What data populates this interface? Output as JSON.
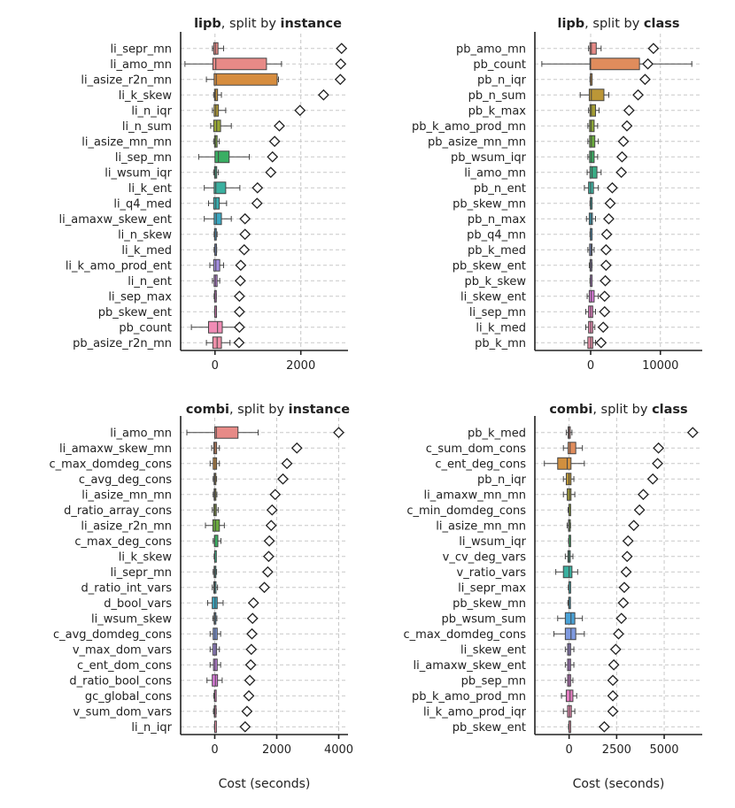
{
  "chart_data": [
    {
      "type": "boxplot",
      "title_bold": "lipb",
      "title_rest": ", split by ",
      "title_bold2": "instance",
      "xlabel": "",
      "xlim": [
        -800,
        3100
      ],
      "xticks": [
        0,
        2000
      ],
      "xtick_labels": [
        "0",
        "2000"
      ],
      "categories": [
        "li_sepr_mn",
        "li_amo_mn",
        "li_asize_r2n_mn",
        "li_k_skew",
        "li_n_iqr",
        "li_n_sum",
        "li_asize_mn_mn",
        "li_sep_mn",
        "li_wsum_iqr",
        "li_k_ent",
        "li_q4_med",
        "li_amaxw_skew_ent",
        "li_n_skew",
        "li_k_med",
        "li_k_amo_prod_ent",
        "li_n_ent",
        "li_sep_max",
        "pb_skew_ent",
        "pb_count",
        "pb_asize_r2n_mn"
      ],
      "colors": [
        "#e78a87",
        "#e78a87",
        "#d68d3f",
        "#c8963c",
        "#b39c36",
        "#97a634",
        "#7aaa38",
        "#3aae63",
        "#3aae86",
        "#3bb0a0",
        "#3aadb0",
        "#3ba8c3",
        "#4aa3d8",
        "#7f9ae0",
        "#a58fe3",
        "#c383e5",
        "#d87ad8",
        "#e57dc2",
        "#f08cb5",
        "#ed8fa8"
      ],
      "boxes": [
        {
          "whislo": -60,
          "q1": -30,
          "med": 10,
          "q3": 70,
          "whishi": 200,
          "flier": 2950
        },
        {
          "whislo": -700,
          "q1": -50,
          "med": 20,
          "q3": 1200,
          "whishi": 1550,
          "flier": 2930
        },
        {
          "whislo": -200,
          "q1": -20,
          "med": 30,
          "q3": 1450,
          "whishi": 1480,
          "flier": 2920
        },
        {
          "whislo": -30,
          "q1": -10,
          "med": 10,
          "q3": 60,
          "whishi": 150,
          "flier": 2530
        },
        {
          "whislo": -60,
          "q1": -20,
          "med": 20,
          "q3": 80,
          "whishi": 250,
          "flier": 1980
        },
        {
          "whislo": -100,
          "q1": -30,
          "med": 40,
          "q3": 130,
          "whishi": 380,
          "flier": 1500
        },
        {
          "whislo": -30,
          "q1": -10,
          "med": 10,
          "q3": 50,
          "whishi": 100,
          "flier": 1390
        },
        {
          "whislo": -380,
          "q1": 0,
          "med": 80,
          "q3": 330,
          "whishi": 800,
          "flier": 1340
        },
        {
          "whislo": -30,
          "q1": -10,
          "med": 5,
          "q3": 40,
          "whishi": 80,
          "flier": 1300
        },
        {
          "whislo": -250,
          "q1": -20,
          "med": 20,
          "q3": 250,
          "whishi": 580,
          "flier": 990
        },
        {
          "whislo": -150,
          "q1": -30,
          "med": 20,
          "q3": 100,
          "whishi": 270,
          "flier": 980
        },
        {
          "whislo": -250,
          "q1": -20,
          "med": 30,
          "q3": 150,
          "whishi": 380,
          "flier": 700
        },
        {
          "whislo": -20,
          "q1": -10,
          "med": 0,
          "q3": 30,
          "whishi": 50,
          "flier": 700
        },
        {
          "whislo": -20,
          "q1": -5,
          "med": 5,
          "q3": 25,
          "whishi": 40,
          "flier": 680
        },
        {
          "whislo": -120,
          "q1": -30,
          "med": 20,
          "q3": 110,
          "whishi": 200,
          "flier": 600
        },
        {
          "whislo": -60,
          "q1": -20,
          "med": 10,
          "q3": 50,
          "whishi": 110,
          "flier": 590
        },
        {
          "whislo": -20,
          "q1": -10,
          "med": 0,
          "q3": 15,
          "whishi": 30,
          "flier": 570
        },
        {
          "whislo": -10,
          "q1": -5,
          "med": 0,
          "q3": 10,
          "whishi": 20,
          "flier": 570
        },
        {
          "whislo": -550,
          "q1": -150,
          "med": 60,
          "q3": 170,
          "whishi": 500,
          "flier": 570
        },
        {
          "whislo": -200,
          "q1": -50,
          "med": 50,
          "q3": 150,
          "whishi": 350,
          "flier": 560
        }
      ]
    },
    {
      "type": "boxplot",
      "title_bold": "lipb",
      "title_rest": ", split by ",
      "title_bold2": "class",
      "xlabel": "",
      "xlim": [
        -8000,
        16000
      ],
      "xticks": [
        0,
        10000
      ],
      "xtick_labels": [
        "0",
        "10000"
      ],
      "categories": [
        "pb_amo_mn",
        "pb_count",
        "pb_n_iqr",
        "pb_n_sum",
        "pb_k_max",
        "pb_k_amo_prod_mn",
        "pb_asize_mn_mn",
        "pb_wsum_iqr",
        "li_amo_mn",
        "pb_n_ent",
        "pb_skew_mn",
        "pb_n_max",
        "pb_q4_mn",
        "pb_k_med",
        "pb_skew_ent",
        "pb_k_skew",
        "li_skew_ent",
        "li_sep_mn",
        "li_k_med",
        "pb_k_mn"
      ],
      "colors": [
        "#e78a87",
        "#e08c5c",
        "#d08f3f",
        "#bb9637",
        "#a49d34",
        "#8aa535",
        "#6aab3d",
        "#3aae62",
        "#3aae86",
        "#3bb0a0",
        "#3aadb0",
        "#3ba8c3",
        "#4aa3d8",
        "#7f9ae0",
        "#a58fe3",
        "#c383e5",
        "#d87ad8",
        "#e57dc2",
        "#f08cb5",
        "#ed8fa8"
      ],
      "boxes": [
        {
          "whislo": -300,
          "q1": -100,
          "med": 100,
          "q3": 800,
          "whishi": 1500,
          "flier": 9000
        },
        {
          "whislo": -7000,
          "q1": -100,
          "med": 0,
          "q3": 7000,
          "whishi": 14500,
          "flier": 8200
        },
        {
          "whislo": -100,
          "q1": -50,
          "med": 0,
          "q3": 50,
          "whishi": 120,
          "flier": 7800
        },
        {
          "whislo": -1500,
          "q1": -200,
          "med": 100,
          "q3": 1900,
          "whishi": 2600,
          "flier": 6800
        },
        {
          "whislo": -300,
          "q1": -100,
          "med": 100,
          "q3": 700,
          "whishi": 1200,
          "flier": 5500
        },
        {
          "whislo": -400,
          "q1": -150,
          "med": 50,
          "q3": 500,
          "whishi": 1000,
          "flier": 5200
        },
        {
          "whislo": -400,
          "q1": -150,
          "med": 100,
          "q3": 600,
          "whishi": 1100,
          "flier": 4700
        },
        {
          "whislo": -400,
          "q1": -150,
          "med": 100,
          "q3": 500,
          "whishi": 1000,
          "flier": 4500
        },
        {
          "whislo": -500,
          "q1": -100,
          "med": 200,
          "q3": 900,
          "whishi": 1500,
          "flier": 4400
        },
        {
          "whislo": -900,
          "q1": -300,
          "med": 0,
          "q3": 400,
          "whishi": 1100,
          "flier": 3100
        },
        {
          "whislo": -100,
          "q1": -50,
          "med": 0,
          "q3": 50,
          "whishi": 100,
          "flier": 2800
        },
        {
          "whislo": -600,
          "q1": -200,
          "med": 50,
          "q3": 250,
          "whishi": 700,
          "flier": 2600
        },
        {
          "whislo": -100,
          "q1": -50,
          "med": 0,
          "q3": 50,
          "whishi": 100,
          "flier": 2300
        },
        {
          "whislo": -400,
          "q1": -150,
          "med": 50,
          "q3": 200,
          "whishi": 500,
          "flier": 2200
        },
        {
          "whislo": -200,
          "q1": -80,
          "med": 0,
          "q3": 80,
          "whishi": 200,
          "flier": 2200
        },
        {
          "whislo": -100,
          "q1": -50,
          "med": 0,
          "q3": 50,
          "whishi": 100,
          "flier": 2100
        },
        {
          "whislo": -500,
          "q1": -200,
          "med": 100,
          "q3": 500,
          "whishi": 1100,
          "flier": 2000
        },
        {
          "whislo": -700,
          "q1": -300,
          "med": 0,
          "q3": 300,
          "whishi": 700,
          "flier": 2000
        },
        {
          "whislo": -700,
          "q1": -300,
          "med": 0,
          "q3": 300,
          "whishi": 600,
          "flier": 1800
        },
        {
          "whislo": -900,
          "q1": -400,
          "med": 0,
          "q3": 300,
          "whishi": 700,
          "flier": 1500
        }
      ]
    },
    {
      "type": "boxplot",
      "title_bold": "combi",
      "title_rest": ", split by ",
      "title_bold2": "instance",
      "xlabel": "Cost (seconds)",
      "xlim": [
        -1100,
        4300
      ],
      "xticks": [
        0,
        2000,
        4000
      ],
      "xtick_labels": [
        "0",
        "2000",
        "4000"
      ],
      "categories": [
        "li_amo_mn",
        "li_amaxw_skew_mn",
        "c_max_domdeg_cons",
        "c_avg_deg_cons",
        "li_asize_mn_mn",
        "d_ratio_array_cons",
        "li_asize_r2n_mn",
        "c_max_deg_cons",
        "li_k_skew",
        "li_sepr_mn",
        "d_ratio_int_vars",
        "d_bool_vars",
        "li_wsum_skew",
        "c_avg_domdeg_cons",
        "v_max_dom_vars",
        "c_ent_dom_cons",
        "d_ratio_bool_cons",
        "gc_global_cons",
        "v_sum_dom_vars",
        "li_n_iqr"
      ],
      "colors": [
        "#e78a87",
        "#e08c5c",
        "#d08f3f",
        "#bb9637",
        "#a49d34",
        "#8aa535",
        "#6aab3d",
        "#3aae62",
        "#3aae86",
        "#3bb0a0",
        "#3aadb0",
        "#3ba8c3",
        "#4aa3d8",
        "#7f9ae0",
        "#a58fe3",
        "#c383e5",
        "#d87ad8",
        "#e57dc2",
        "#f08cb5",
        "#ed8fa8"
      ],
      "boxes": [
        {
          "whislo": -900,
          "q1": 0,
          "med": 50,
          "q3": 750,
          "whishi": 1400,
          "flier": 4000
        },
        {
          "whislo": -100,
          "q1": -30,
          "med": 10,
          "q3": 60,
          "whishi": 150,
          "flier": 2650
        },
        {
          "whislo": -150,
          "q1": -50,
          "med": 10,
          "q3": 60,
          "whishi": 150,
          "flier": 2330
        },
        {
          "whislo": -50,
          "q1": -20,
          "med": 0,
          "q3": 30,
          "whishi": 60,
          "flier": 2200
        },
        {
          "whislo": -50,
          "q1": -20,
          "med": 0,
          "q3": 30,
          "whishi": 70,
          "flier": 1950
        },
        {
          "whislo": -80,
          "q1": -30,
          "med": 10,
          "q3": 50,
          "whishi": 110,
          "flier": 1850
        },
        {
          "whislo": -300,
          "q1": -60,
          "med": 20,
          "q3": 150,
          "whishi": 310,
          "flier": 1820
        },
        {
          "whislo": -50,
          "q1": -10,
          "med": 0,
          "q3": 100,
          "whishi": 200,
          "flier": 1760
        },
        {
          "whislo": -20,
          "q1": -5,
          "med": 0,
          "q3": 5,
          "whishi": 20,
          "flier": 1740
        },
        {
          "whislo": -50,
          "q1": -20,
          "med": 0,
          "q3": 20,
          "whishi": 60,
          "flier": 1710
        },
        {
          "whislo": -80,
          "q1": -30,
          "med": 0,
          "q3": 40,
          "whishi": 90,
          "flier": 1600
        },
        {
          "whislo": -230,
          "q1": -80,
          "med": 10,
          "q3": 80,
          "whishi": 270,
          "flier": 1250
        },
        {
          "whislo": -60,
          "q1": -20,
          "med": 0,
          "q3": 30,
          "whishi": 70,
          "flier": 1220
        },
        {
          "whislo": -150,
          "q1": -50,
          "med": 10,
          "q3": 80,
          "whishi": 190,
          "flier": 1200
        },
        {
          "whislo": -150,
          "q1": -60,
          "med": 10,
          "q3": 60,
          "whishi": 150,
          "flier": 1180
        },
        {
          "whislo": -150,
          "q1": -40,
          "med": 10,
          "q3": 80,
          "whishi": 190,
          "flier": 1160
        },
        {
          "whislo": -250,
          "q1": -80,
          "med": 20,
          "q3": 90,
          "whishi": 240,
          "flier": 1130
        },
        {
          "whislo": -30,
          "q1": -10,
          "med": 0,
          "q3": 10,
          "whishi": 30,
          "flier": 1100
        },
        {
          "whislo": -40,
          "q1": -15,
          "med": 0,
          "q3": 20,
          "whishi": 50,
          "flier": 1040
        },
        {
          "whislo": -10,
          "q1": -3,
          "med": 0,
          "q3": 3,
          "whishi": 10,
          "flier": 980
        }
      ]
    },
    {
      "type": "boxplot",
      "title_bold": "combi",
      "title_rest": ", split by ",
      "title_bold2": "class",
      "xlabel": "Cost (seconds)",
      "xlim": [
        -1800,
        7000
      ],
      "xticks": [
        0,
        2500,
        5000
      ],
      "xtick_labels": [
        "0",
        "2500",
        "5000"
      ],
      "categories": [
        "pb_k_med",
        "c_sum_dom_cons",
        "c_ent_deg_cons",
        "pb_n_iqr",
        "li_amaxw_mn_mn",
        "c_min_domdeg_cons",
        "li_asize_mn_mn",
        "li_wsum_iqr",
        "v_cv_deg_vars",
        "v_ratio_vars",
        "li_sepr_max",
        "pb_skew_mn",
        "pb_wsum_sum",
        "c_max_domdeg_cons",
        "li_skew_ent",
        "li_amaxw_skew_ent",
        "pb_sep_mn",
        "pb_k_amo_prod_mn",
        "li_k_amo_prod_iqr",
        "pb_skew_ent"
      ],
      "colors": [
        "#e78a87",
        "#e08c5c",
        "#d08f3f",
        "#bb9637",
        "#a49d34",
        "#8aa535",
        "#6aab3d",
        "#3aae62",
        "#3aae86",
        "#3bb0a0",
        "#3aadb0",
        "#3ba8c3",
        "#4aa3d8",
        "#7f9ae0",
        "#a58fe3",
        "#c383e5",
        "#d87ad8",
        "#e57dc2",
        "#f08cb5",
        "#ed8fa8"
      ],
      "boxes": [
        {
          "whislo": -150,
          "q1": -50,
          "med": 0,
          "q3": 60,
          "whishi": 150,
          "flier": 6500
        },
        {
          "whislo": -300,
          "q1": -50,
          "med": 50,
          "q3": 350,
          "whishi": 700,
          "flier": 4700
        },
        {
          "whislo": -1300,
          "q1": -600,
          "med": -100,
          "q3": 100,
          "whishi": 800,
          "flier": 4650
        },
        {
          "whislo": -300,
          "q1": -150,
          "med": 0,
          "q3": 100,
          "whishi": 250,
          "flier": 4400
        },
        {
          "whislo": -300,
          "q1": -100,
          "med": 20,
          "q3": 100,
          "whishi": 300,
          "flier": 3900
        },
        {
          "whislo": -50,
          "q1": -10,
          "med": 0,
          "q3": 10,
          "whishi": 50,
          "flier": 3700
        },
        {
          "whislo": -100,
          "q1": -30,
          "med": 0,
          "q3": 30,
          "whishi": 80,
          "flier": 3400
        },
        {
          "whislo": -30,
          "q1": -10,
          "med": 0,
          "q3": 10,
          "whishi": 30,
          "flier": 3100
        },
        {
          "whislo": -200,
          "q1": -60,
          "med": 0,
          "q3": 60,
          "whishi": 200,
          "flier": 3050
        },
        {
          "whislo": -700,
          "q1": -300,
          "med": 0,
          "q3": 150,
          "whishi": 450,
          "flier": 3000
        },
        {
          "whislo": -40,
          "q1": -10,
          "med": 0,
          "q3": 10,
          "whishi": 40,
          "flier": 2900
        },
        {
          "whislo": -60,
          "q1": -20,
          "med": 0,
          "q3": 20,
          "whishi": 60,
          "flier": 2850
        },
        {
          "whislo": -600,
          "q1": -200,
          "med": 100,
          "q3": 300,
          "whishi": 700,
          "flier": 2750
        },
        {
          "whislo": -800,
          "q1": -200,
          "med": 100,
          "q3": 350,
          "whishi": 800,
          "flier": 2600
        },
        {
          "whislo": -200,
          "q1": -80,
          "med": 0,
          "q3": 80,
          "whishi": 250,
          "flier": 2450
        },
        {
          "whislo": -200,
          "q1": -80,
          "med": 0,
          "q3": 80,
          "whishi": 250,
          "flier": 2350
        },
        {
          "whislo": -200,
          "q1": -80,
          "med": 0,
          "q3": 80,
          "whishi": 200,
          "flier": 2300
        },
        {
          "whislo": -400,
          "q1": -150,
          "med": 50,
          "q3": 200,
          "whishi": 400,
          "flier": 2300
        },
        {
          "whislo": -300,
          "q1": -80,
          "med": 20,
          "q3": 120,
          "whishi": 300,
          "flier": 2300
        },
        {
          "whislo": -30,
          "q1": -10,
          "med": 0,
          "q3": 10,
          "whishi": 30,
          "flier": 1850
        }
      ]
    }
  ]
}
